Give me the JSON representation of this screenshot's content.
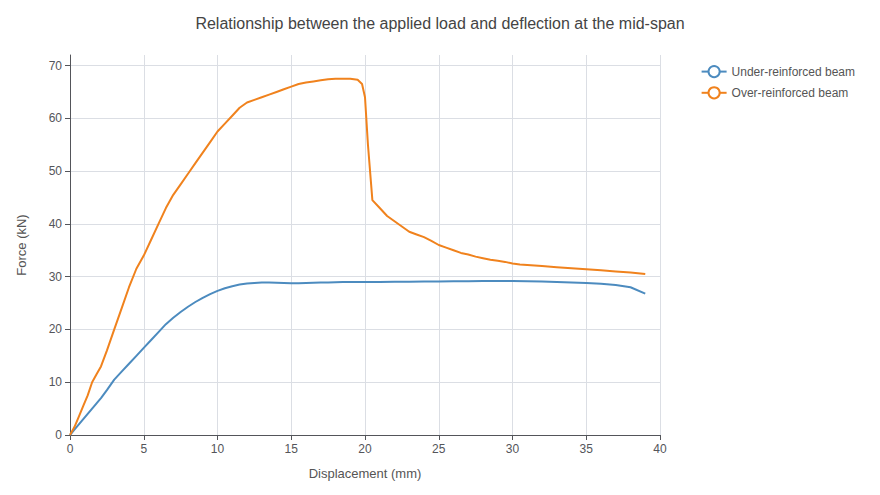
{
  "chart_data": {
    "type": "line",
    "title": "Relationship between the applied load and deflection at the mid-span",
    "xlabel": "Displacement (mm)",
    "ylabel": "Force (kN)",
    "series": [
      {
        "name": "Under-reinforced beam",
        "color": "#4c8bbf",
        "x": [
          0,
          0.3,
          0.6,
          0.9,
          1.2,
          1.5,
          1.8,
          2.1,
          2.5,
          3.0,
          3.5,
          4.0,
          4.5,
          5.0,
          5.5,
          6.0,
          6.5,
          7.0,
          7.5,
          8.0,
          8.5,
          9.0,
          9.5,
          10.0,
          10.5,
          11.0,
          11.5,
          12.0,
          12.5,
          13.0,
          13.5,
          14.0,
          14.5,
          15.0,
          15.5,
          16.0,
          16.5,
          17.0,
          17.5,
          18.0,
          18.5,
          19.0,
          19.5,
          20.0,
          21.0,
          22.0,
          23.0,
          24.0,
          25.0,
          26.0,
          27.0,
          28.0,
          29.0,
          30.0,
          31.0,
          32.0,
          33.0,
          34.0,
          35.0,
          36.0,
          37.0,
          38.0,
          39.0
        ],
        "values": [
          0,
          1.0,
          2.0,
          3.0,
          4.0,
          5.0,
          6.0,
          7.0,
          8.5,
          10.5,
          12.0,
          13.5,
          15.0,
          16.5,
          18.0,
          19.5,
          21.0,
          22.2,
          23.3,
          24.3,
          25.2,
          26.0,
          26.7,
          27.3,
          27.8,
          28.2,
          28.5,
          28.7,
          28.8,
          28.9,
          28.9,
          28.85,
          28.8,
          28.75,
          28.75,
          28.8,
          28.85,
          28.9,
          28.9,
          28.95,
          29.0,
          29.0,
          29.0,
          29.0,
          29.0,
          29.05,
          29.05,
          29.1,
          29.1,
          29.15,
          29.15,
          29.2,
          29.2,
          29.2,
          29.15,
          29.1,
          29.0,
          28.9,
          28.8,
          28.65,
          28.4,
          28.0,
          26.8
        ]
      },
      {
        "name": "Over-reinforced beam",
        "color": "#f0821d",
        "x": [
          0,
          0.3,
          0.6,
          0.9,
          1.2,
          1.5,
          1.8,
          2.1,
          2.5,
          3.0,
          3.5,
          4.0,
          4.5,
          5.0,
          5.5,
          6.0,
          6.5,
          7.0,
          7.5,
          8.0,
          8.5,
          9.0,
          9.5,
          10.0,
          10.5,
          11.0,
          11.5,
          12.0,
          12.5,
          13.0,
          13.5,
          14.0,
          14.5,
          15.0,
          15.5,
          16.0,
          16.5,
          17.0,
          17.5,
          18.0,
          18.5,
          19.0,
          19.5,
          19.8,
          20.0,
          20.2,
          20.5,
          21.0,
          21.5,
          22.0,
          22.5,
          23.0,
          23.5,
          24.0,
          24.5,
          25.0,
          25.5,
          26.0,
          26.5,
          27.0,
          27.5,
          28.0,
          28.5,
          29.0,
          29.5,
          30.0,
          30.5,
          31.0,
          31.5,
          32.0,
          33.0,
          34.0,
          35.0,
          36.0,
          37.0,
          38.0,
          39.0
        ],
        "values": [
          0,
          1.5,
          3.5,
          5.5,
          7.5,
          10.0,
          11.5,
          13.0,
          16.0,
          20.0,
          24.0,
          28.0,
          31.5,
          34.0,
          37.0,
          40.0,
          43.0,
          45.5,
          47.5,
          49.5,
          51.5,
          53.5,
          55.5,
          57.5,
          59.0,
          60.5,
          62.0,
          63.0,
          63.5,
          64.0,
          64.5,
          65.0,
          65.5,
          66.0,
          66.5,
          66.8,
          67.0,
          67.2,
          67.4,
          67.5,
          67.5,
          67.5,
          67.3,
          66.5,
          64.0,
          55.0,
          44.5,
          43.0,
          41.5,
          40.5,
          39.5,
          38.5,
          38.0,
          37.5,
          36.8,
          36.0,
          35.5,
          35.0,
          34.5,
          34.2,
          33.8,
          33.5,
          33.2,
          33.0,
          32.8,
          32.5,
          32.3,
          32.2,
          32.1,
          32.0,
          31.8,
          31.6,
          31.4,
          31.2,
          31.0,
          30.8,
          30.5
        ]
      }
    ],
    "xlim": [
      0,
      40
    ],
    "ylim": [
      0,
      72
    ],
    "xticks": [
      0,
      5,
      10,
      15,
      20,
      25,
      30,
      35,
      40
    ],
    "yticks": [
      0,
      10,
      20,
      30,
      40,
      50,
      60,
      70
    ],
    "grid": true,
    "legend": "right"
  }
}
